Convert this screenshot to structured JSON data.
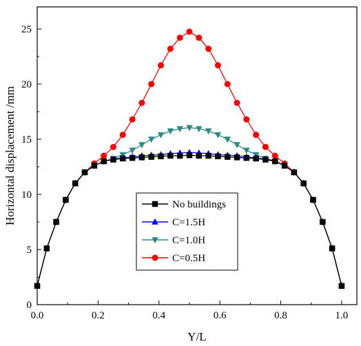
{
  "chart_data": {
    "type": "line",
    "title": "",
    "xlabel": "Y/L",
    "ylabel": "Horizontal displacement /mm",
    "xlim": [
      0.0,
      1.05
    ],
    "ylim": [
      0,
      27
    ],
    "xticks": [
      0.0,
      0.2,
      0.4,
      0.6,
      0.8,
      1.0
    ],
    "xtick_labels": [
      "0.0",
      "0.2",
      "0.4",
      "0.6",
      "0.8",
      "1.0"
    ],
    "yticks": [
      0,
      5,
      10,
      15,
      20,
      25
    ],
    "ytick_labels": [
      "0",
      "5",
      "10",
      "15",
      "20",
      "25"
    ],
    "grid": false,
    "legend_position": "bottom-center",
    "x": [
      0.0,
      0.03125,
      0.0625,
      0.09375,
      0.125,
      0.15625,
      0.1875,
      0.21875,
      0.25,
      0.28125,
      0.3125,
      0.34375,
      0.375,
      0.40625,
      0.4375,
      0.46875,
      0.5,
      0.53125,
      0.5625,
      0.59375,
      0.625,
      0.65625,
      0.6875,
      0.71875,
      0.75,
      0.78125,
      0.8125,
      0.84375,
      0.875,
      0.90625,
      0.9375,
      0.96875,
      1.0
    ],
    "series": [
      {
        "name": "No buildings",
        "color": "#000000",
        "marker": "square",
        "values": [
          1.7,
          5.1,
          7.5,
          9.5,
          11.0,
          12.0,
          12.6,
          13.0,
          13.15,
          13.25,
          13.3,
          13.35,
          13.4,
          13.45,
          13.5,
          13.5,
          13.55,
          13.5,
          13.5,
          13.45,
          13.4,
          13.35,
          13.3,
          13.25,
          13.15,
          13.0,
          12.6,
          12.0,
          11.0,
          9.5,
          7.5,
          5.1,
          1.7
        ]
      },
      {
        "name": "C=1.5H",
        "color": "#0000ff",
        "marker": "triangle-up",
        "values": [
          1.7,
          5.1,
          7.5,
          9.5,
          11.0,
          12.0,
          12.6,
          13.0,
          13.2,
          13.3,
          13.4,
          13.5,
          13.55,
          13.6,
          13.7,
          13.75,
          13.8,
          13.75,
          13.7,
          13.6,
          13.55,
          13.5,
          13.4,
          13.3,
          13.2,
          13.05,
          12.6,
          12.0,
          11.0,
          9.5,
          7.5,
          5.1,
          1.7
        ]
      },
      {
        "name": "C=1.0H",
        "color": "#2a8a8a",
        "marker": "triangle-down",
        "values": [
          1.7,
          5.1,
          7.5,
          9.5,
          11.0,
          12.0,
          12.6,
          13.0,
          13.25,
          13.6,
          14.0,
          14.5,
          15.0,
          15.4,
          15.75,
          15.95,
          16.05,
          15.95,
          15.75,
          15.4,
          15.0,
          14.5,
          14.0,
          13.6,
          13.25,
          13.0,
          12.6,
          12.0,
          11.0,
          9.5,
          7.5,
          5.1,
          1.7
        ]
      },
      {
        "name": "C=0.5H",
        "color": "#ff0000",
        "marker": "circle",
        "values": [
          1.7,
          5.1,
          7.5,
          9.5,
          11.0,
          12.0,
          12.8,
          13.5,
          14.3,
          15.4,
          16.8,
          18.3,
          20.0,
          21.7,
          23.2,
          24.2,
          24.75,
          24.2,
          23.2,
          21.7,
          20.0,
          18.3,
          16.8,
          15.4,
          14.3,
          13.5,
          12.8,
          12.0,
          11.0,
          9.5,
          7.5,
          5.1,
          1.7
        ]
      }
    ]
  }
}
